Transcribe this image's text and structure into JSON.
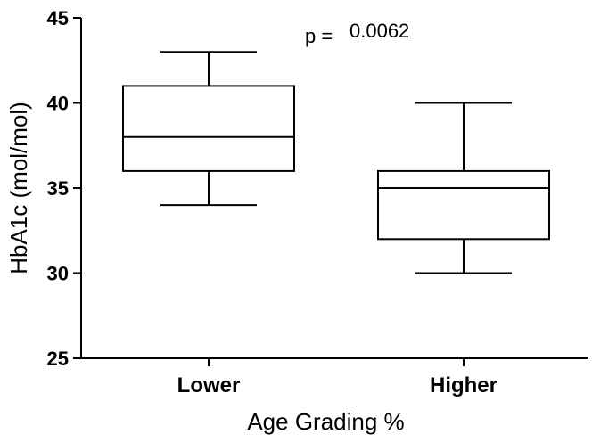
{
  "chart_data": {
    "type": "box",
    "xlabel": "Age Grading %",
    "ylabel": "HbA1c (mol/mol)",
    "ylim": [
      25,
      45
    ],
    "yticks": [
      25,
      30,
      35,
      40,
      45
    ],
    "yticks_labels": [
      "25",
      "30",
      "35",
      "40",
      "45"
    ],
    "categories": [
      "Lower",
      "Higher"
    ],
    "boxes": [
      {
        "category": "Lower",
        "min": 34,
        "q1": 36,
        "median": 38,
        "q3": 41,
        "max": 43
      },
      {
        "category": "Higher",
        "min": 30,
        "q1": 32,
        "median": 35,
        "q3": 36,
        "max": 40
      }
    ],
    "annotation": {
      "p_label": "p =",
      "p_value": "0.0062"
    },
    "grid": false,
    "legend": "none"
  }
}
